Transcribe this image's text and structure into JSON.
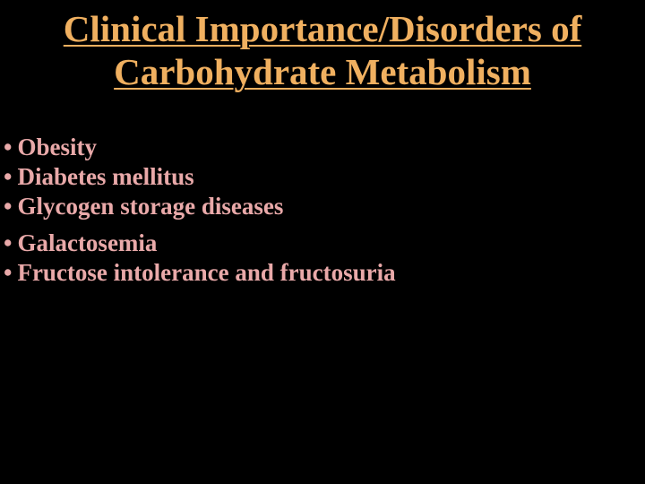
{
  "slide": {
    "title_line1": "Clinical Importance/Disorders of",
    "title_line2": "Carbohydrate Metabolism",
    "bullets": [
      "Obesity",
      "Diabetes mellitus",
      "Glycogen storage diseases",
      "Galactosemia",
      "Fructose intolerance and fructosuria"
    ],
    "title_color": "#f0b060",
    "bullet_color": "#e9a9a9",
    "background_color": "#000000",
    "title_fontsize": 41,
    "bullet_fontsize": 27,
    "font_family": "Times New Roman"
  }
}
